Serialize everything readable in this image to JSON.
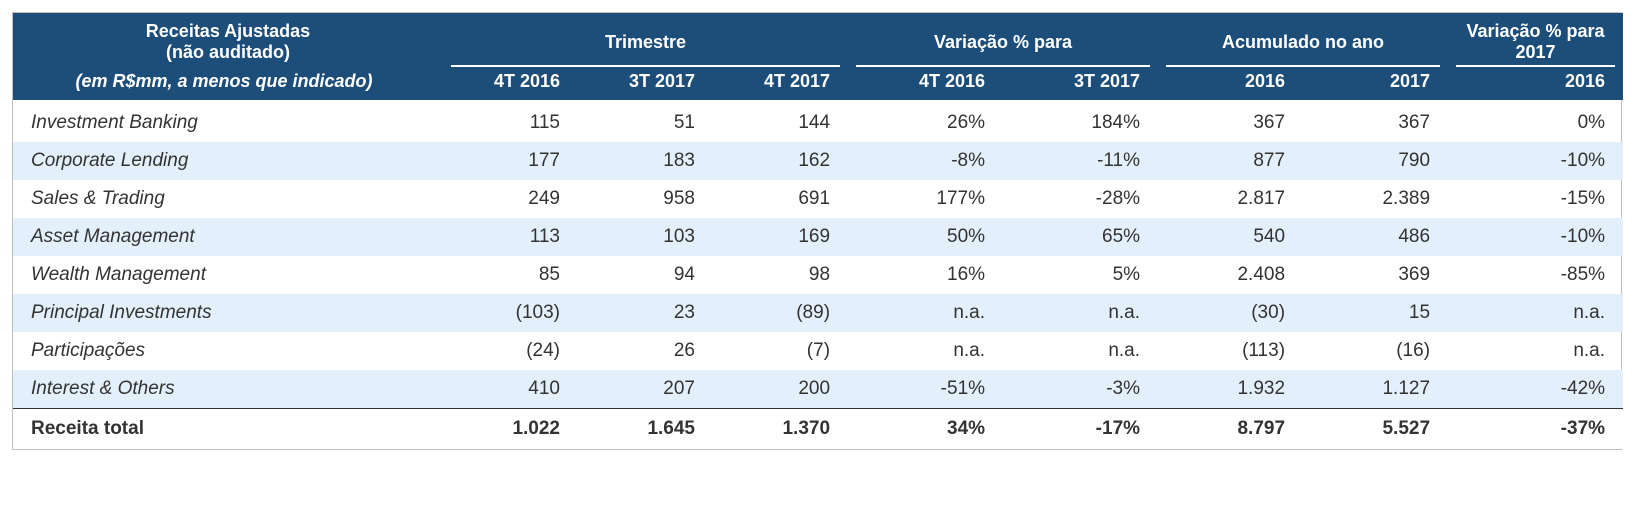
{
  "type": "table",
  "background_color": "#ffffff",
  "border_color": "#bfbfbf",
  "header_bg": "#1d4e79",
  "header_text_color": "#ffffff",
  "alt_row_bg": "#e3effa",
  "body_text_color": "#333333",
  "font_family": "Segoe UI",
  "header_fontsize_pt": 13,
  "body_fontsize_pt": 13.5,
  "title1": "Receitas Ajustadas",
  "title2": "(não auditado)",
  "subtitle": "(em R$mm, a menos que indicado)",
  "groups": [
    {
      "label": "Trimestre",
      "subs": [
        "4T 2016",
        "3T 2017",
        "4T 2017"
      ]
    },
    {
      "label": "Variação % para",
      "subs": [
        "4T 2016",
        "3T 2017"
      ]
    },
    {
      "label": "Acumulado no ano",
      "subs": [
        "2016",
        "2017"
      ]
    },
    {
      "label": "Variação % para 2017",
      "subs": [
        "2016"
      ]
    }
  ],
  "rows": [
    {
      "label": "Investment Banking",
      "alt": false,
      "cells": [
        "115",
        "51",
        "144",
        "26%",
        "184%",
        "367",
        "367",
        "0%"
      ]
    },
    {
      "label": "Corporate Lending",
      "alt": true,
      "cells": [
        "177",
        "183",
        "162",
        "-8%",
        "-11%",
        "877",
        "790",
        "-10%"
      ]
    },
    {
      "label": "Sales & Trading",
      "alt": false,
      "cells": [
        "249",
        "958",
        "691",
        "177%",
        "-28%",
        "2.817",
        "2.389",
        "-15%"
      ]
    },
    {
      "label": "Asset Management",
      "alt": true,
      "cells": [
        "113",
        "103",
        "169",
        "50%",
        "65%",
        "540",
        "486",
        "-10%"
      ]
    },
    {
      "label": "Wealth Management",
      "alt": false,
      "cells": [
        "85",
        "94",
        "98",
        "16%",
        "5%",
        "2.408",
        "369",
        "-85%"
      ]
    },
    {
      "label": "Principal Investments",
      "alt": true,
      "cells": [
        "(103)",
        "23",
        "(89)",
        "n.a.",
        "n.a.",
        "(30)",
        "15",
        "n.a."
      ]
    },
    {
      "label": "Participações",
      "alt": false,
      "cells": [
        "(24)",
        "26",
        "(7)",
        "n.a.",
        "n.a.",
        "(113)",
        "(16)",
        "n.a."
      ]
    },
    {
      "label": "Interest & Others",
      "alt": true,
      "cells": [
        "410",
        "207",
        "200",
        "-51%",
        "-3%",
        "1.932",
        "1.127",
        "-42%"
      ]
    }
  ],
  "total": {
    "label": "Receita total",
    "cells": [
      "1.022",
      "1.645",
      "1.370",
      "34%",
      "-17%",
      "8.797",
      "5.527",
      "-37%"
    ]
  }
}
